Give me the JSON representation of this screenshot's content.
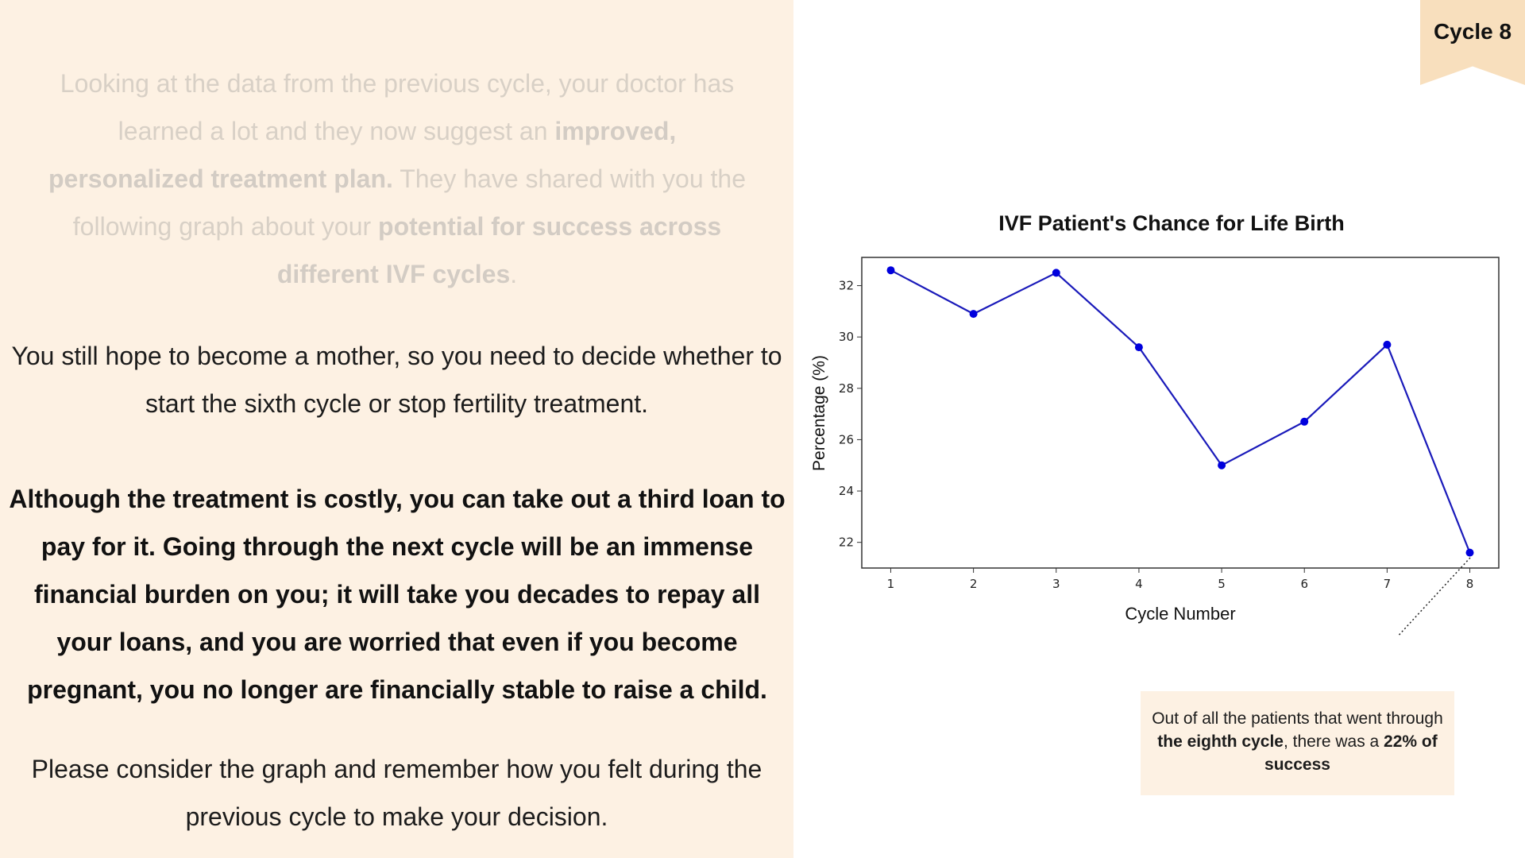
{
  "cycle_tab": {
    "label": "Cycle 8"
  },
  "intro_faded": {
    "p1": "Looking at the data from the previous cycle, your doctor has learned a lot and they now suggest an ",
    "b1": "improved, personalized treatment plan.",
    "p2": " They have shared with you the following graph about your ",
    "b2": "potential for success across different IVF cycles",
    "p3": "."
  },
  "hope_text": "You still hope to become a mother, so you need to decide whether to start the sixth cycle or stop fertility treatment.",
  "loan_text": "Although the treatment is costly, you can take out a third loan to pay for it. Going through the next cycle will be an immense financial burden on you; it will take you decades to repay all your loans, and you are worried that even if you become pregnant, you no longer are financially stable to raise a child.",
  "consider_text": "Please consider the graph and remember how you felt during the previous cycle to make your decision.",
  "annotation": {
    "t1": "Out of all the patients that went through ",
    "b1": "the eighth cycle",
    "t2": ", there was a ",
    "b2": "22% of success"
  },
  "chart_data": {
    "type": "line",
    "title": "IVF Patient's Chance for Life Birth",
    "xlabel": "Cycle Number",
    "ylabel": "Percentage (%)",
    "x": [
      1,
      2,
      3,
      4,
      5,
      6,
      7,
      8
    ],
    "series": [
      {
        "values": [
          32.6,
          30.9,
          32.5,
          29.6,
          25.0,
          26.7,
          29.7,
          21.6
        ]
      }
    ],
    "xticks": [
      "1",
      "2",
      "3",
      "4",
      "5",
      "6",
      "7",
      "8"
    ],
    "yticks": [
      "22",
      "24",
      "26",
      "28",
      "30",
      "32"
    ],
    "xlim": [
      0.65,
      8.35
    ],
    "ylim": [
      21.0,
      33.1
    ],
    "grid": false,
    "line_color": "#1a1aba",
    "marker_color": "#0000dd"
  }
}
